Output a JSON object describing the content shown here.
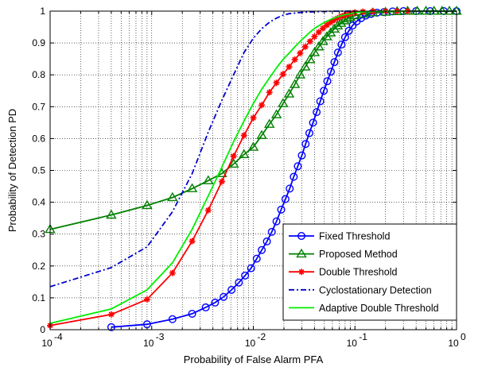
{
  "chart_data": {
    "type": "line",
    "title": "",
    "xlabel": "Probability of False Alarm PFA",
    "ylabel": "Probability of Detection PD",
    "x_scale": "log",
    "xlim": [
      0.0001,
      1
    ],
    "ylim": [
      0,
      1
    ],
    "x_tick_labels": [
      "10",
      "10",
      "10",
      "10",
      "10"
    ],
    "x_tick_exponents": [
      "-4",
      "-3",
      "-2",
      "-1",
      "0"
    ],
    "y_tick_labels": [
      "0",
      "0.1",
      "0.2",
      "0.3",
      "0.4",
      "0.5",
      "0.6",
      "0.7",
      "0.8",
      "0.9",
      "1"
    ],
    "grid": true,
    "legend_position": "bottom-right",
    "series": [
      {
        "name": "Fixed Threshold",
        "color": "#0000ff",
        "line_style": "solid",
        "marker": "circle",
        "x": [
          0.0004,
          0.0009,
          0.0016,
          0.0025,
          0.0034,
          0.0042,
          0.0051,
          0.0061,
          0.0072,
          0.0083,
          0.0095,
          0.0108,
          0.0121,
          0.0136,
          0.0152,
          0.0169,
          0.0188,
          0.0207,
          0.0228,
          0.025,
          0.0274,
          0.03,
          0.0327,
          0.0356,
          0.0387,
          0.042,
          0.0456,
          0.0494,
          0.0535,
          0.058,
          0.0628,
          0.068,
          0.0738,
          0.08,
          0.087,
          0.095,
          0.104,
          0.115,
          0.128,
          0.144,
          0.165,
          0.193,
          0.235,
          0.3,
          0.4,
          0.55,
          0.75,
          1.0
        ],
        "y": [
          0.008,
          0.017,
          0.033,
          0.05,
          0.07,
          0.085,
          0.103,
          0.125,
          0.148,
          0.17,
          0.193,
          0.223,
          0.25,
          0.277,
          0.307,
          0.34,
          0.377,
          0.41,
          0.443,
          0.48,
          0.513,
          0.547,
          0.583,
          0.617,
          0.65,
          0.683,
          0.717,
          0.75,
          0.78,
          0.81,
          0.84,
          0.87,
          0.895,
          0.918,
          0.938,
          0.955,
          0.968,
          0.978,
          0.986,
          0.991,
          0.995,
          0.997,
          0.999,
          1.0,
          1.0,
          1.0,
          1.0,
          1.0
        ]
      },
      {
        "name": "Proposed Method",
        "color": "#008000",
        "line_style": "solid",
        "marker": "triangle",
        "x": [
          0.0001,
          0.0004,
          0.0009,
          0.0016,
          0.0025,
          0.0036,
          0.0049,
          0.0064,
          0.0081,
          0.01,
          0.0121,
          0.0144,
          0.0169,
          0.0196,
          0.0225,
          0.0256,
          0.0289,
          0.0324,
          0.0361,
          0.04,
          0.0441,
          0.0484,
          0.0529,
          0.0576,
          0.0625,
          0.0676,
          0.0729,
          0.0784,
          0.0841,
          0.09,
          0.1,
          0.12,
          0.15,
          0.2,
          0.26,
          0.33,
          0.41,
          0.5,
          0.6,
          0.72,
          0.85,
          1.0
        ],
        "y": [
          0.315,
          0.36,
          0.39,
          0.415,
          0.443,
          0.468,
          0.49,
          0.52,
          0.55,
          0.573,
          0.61,
          0.645,
          0.675,
          0.71,
          0.74,
          0.77,
          0.8,
          0.825,
          0.848,
          0.87,
          0.888,
          0.905,
          0.92,
          0.932,
          0.944,
          0.954,
          0.962,
          0.97,
          0.976,
          0.981,
          0.986,
          0.991,
          0.995,
          0.997,
          0.999,
          1.0,
          1.0,
          1.0,
          1.0,
          1.0,
          1.0,
          1.0
        ]
      },
      {
        "name": "Double Threshold",
        "color": "#ff0000",
        "line_style": "solid",
        "marker": "star",
        "x": [
          0.0001,
          0.0004,
          0.0009,
          0.0016,
          0.0025,
          0.0036,
          0.0049,
          0.0064,
          0.0081,
          0.01,
          0.0121,
          0.0144,
          0.0169,
          0.0196,
          0.0225,
          0.0256,
          0.0289,
          0.0324,
          0.0361,
          0.04,
          0.0441,
          0.0484,
          0.0529,
          0.0576,
          0.0625,
          0.0676,
          0.0729,
          0.0784,
          0.0841,
          0.09,
          0.1,
          0.12,
          0.15,
          0.2,
          0.26,
          0.33
        ],
        "y": [
          0.013,
          0.048,
          0.095,
          0.178,
          0.278,
          0.375,
          0.465,
          0.545,
          0.61,
          0.665,
          0.705,
          0.745,
          0.775,
          0.802,
          0.825,
          0.848,
          0.868,
          0.888,
          0.905,
          0.92,
          0.934,
          0.946,
          0.956,
          0.965,
          0.972,
          0.978,
          0.983,
          0.987,
          0.99,
          0.993,
          0.996,
          0.998,
          0.999,
          1.0,
          1.0,
          1.0
        ]
      },
      {
        "name": "Cyclostationary Detection",
        "color": "#0000cc",
        "line_style": "dashdot",
        "marker": "none",
        "x": [
          0.0001,
          0.0004,
          0.0009,
          0.0016,
          0.0025,
          0.0036,
          0.0049,
          0.0064,
          0.0081,
          0.01,
          0.0121,
          0.0144,
          0.0169,
          0.0196,
          0.0225,
          0.03,
          0.04,
          0.05,
          0.07,
          0.1
        ],
        "y": [
          0.135,
          0.195,
          0.26,
          0.37,
          0.49,
          0.62,
          0.72,
          0.8,
          0.87,
          0.915,
          0.945,
          0.965,
          0.978,
          0.987,
          0.992,
          0.996,
          0.998,
          0.999,
          1.0,
          1.0
        ]
      },
      {
        "name": "Adaptive Double Threshold",
        "color": "#00ee00",
        "line_style": "solid",
        "marker": "none",
        "x": [
          0.0001,
          0.0004,
          0.0009,
          0.0016,
          0.0025,
          0.0036,
          0.0049,
          0.0064,
          0.0081,
          0.01,
          0.0121,
          0.0144,
          0.0169,
          0.0196,
          0.0225,
          0.0256,
          0.0289,
          0.0324,
          0.0361,
          0.04,
          0.0484,
          0.0576,
          0.0676,
          0.0784,
          0.09,
          0.1,
          0.12,
          0.15,
          0.2,
          0.26,
          0.33
        ],
        "y": [
          0.02,
          0.065,
          0.125,
          0.21,
          0.315,
          0.42,
          0.51,
          0.59,
          0.655,
          0.71,
          0.755,
          0.79,
          0.822,
          0.848,
          0.868,
          0.888,
          0.905,
          0.92,
          0.934,
          0.946,
          0.962,
          0.974,
          0.982,
          0.988,
          0.992,
          0.995,
          0.998,
          0.999,
          1.0,
          1.0,
          1.0
        ]
      }
    ]
  }
}
